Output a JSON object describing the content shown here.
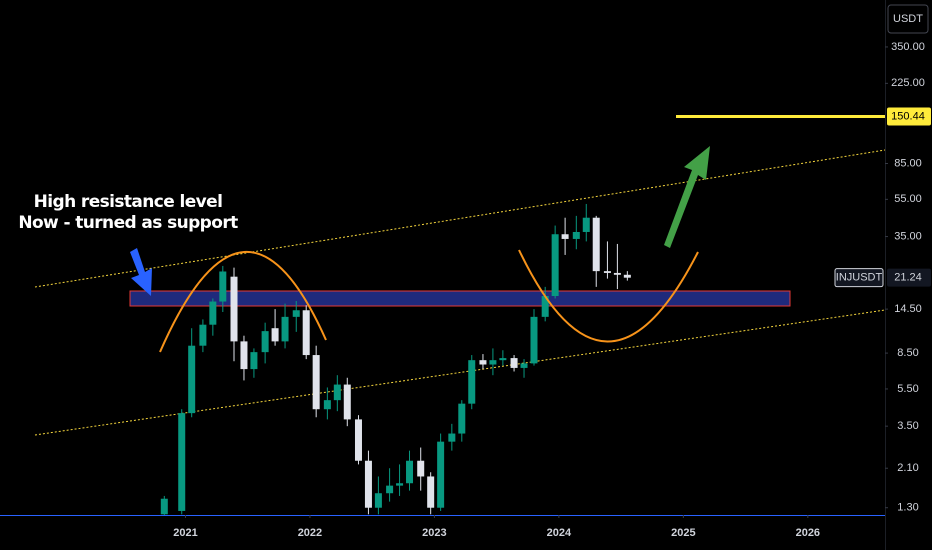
{
  "chart_data": {
    "type": "candlestick",
    "y_axis_label": "USDT",
    "log_scale": true,
    "grid": false,
    "annotations": [
      "High resistance level",
      "Now - turned as support"
    ],
    "xlim": [
      2019.51,
      2026.62
    ],
    "xticks": [
      2021,
      2022,
      2023,
      2024,
      2025,
      2026
    ],
    "ylim": [
      1.19,
      619
    ],
    "yticks": [
      {
        "value": 350,
        "label": "350.00"
      },
      {
        "value": 225,
        "label": "225.00"
      },
      {
        "value": 85,
        "label": "85.00"
      },
      {
        "value": 55,
        "label": "55.00"
      },
      {
        "value": 35,
        "label": "35.00"
      },
      {
        "value": 14.5,
        "label": "14.50"
      },
      {
        "value": 8.5,
        "label": "8.50"
      },
      {
        "value": 5.5,
        "label": "5.50"
      },
      {
        "value": 3.5,
        "label": "3.50"
      },
      {
        "value": 2.1,
        "label": "2.10"
      },
      {
        "value": 1.3,
        "label": "1.30"
      }
    ],
    "hline": {
      "value": 150.44,
      "color": "#ffeb3b"
    },
    "series": [
      {
        "name": "INJUSDT",
        "up_color": "#089981",
        "down_color": "#e0e3eb",
        "x": [
          2020.83,
          2020.97,
          2021.05,
          2021.14,
          2021.22,
          2021.3,
          2021.39,
          2021.47,
          2021.55,
          2021.64,
          2021.72,
          2021.8,
          2021.89,
          2021.97,
          2022.05,
          2022.14,
          2022.22,
          2022.3,
          2022.39,
          2022.47,
          2022.55,
          2022.64,
          2022.72,
          2022.8,
          2022.89,
          2022.97,
          2023.05,
          2023.14,
          2023.22,
          2023.3,
          2023.39,
          2023.47,
          2023.55,
          2023.64,
          2023.72,
          2023.8,
          2023.89,
          2023.97,
          2024.05,
          2024.14,
          2024.22,
          2024.3,
          2024.39,
          2024.47,
          2024.55
        ],
        "open": [
          1.2,
          1.25,
          4.1,
          9.3,
          12.0,
          15.9,
          21.5,
          9.8,
          7.0,
          8.6,
          11.5,
          9.8,
          13.2,
          14.3,
          8.3,
          4.3,
          4.8,
          5.8,
          3.8,
          2.3,
          1.3,
          1.55,
          1.7,
          1.75,
          2.3,
          1.9,
          1.3,
          2.9,
          3.2,
          4.6,
          7.8,
          7.4,
          7.8,
          8.0,
          7.1,
          7.5,
          13.2,
          17,
          36,
          34,
          37,
          44,
          23,
          22.5,
          22
        ],
        "high": [
          1.5,
          4.3,
          11.5,
          12.8,
          16.5,
          24.5,
          24,
          10.5,
          9.0,
          12.3,
          14.5,
          15.5,
          16,
          15.2,
          9.3,
          5.6,
          6.5,
          6.3,
          4.0,
          2.6,
          1.9,
          2.1,
          2.2,
          2.6,
          2.7,
          2.0,
          3.2,
          3.6,
          4.8,
          8.3,
          8.4,
          9.0,
          8.8,
          8.3,
          7.9,
          14.5,
          19,
          40,
          44,
          45,
          52,
          45,
          33,
          32,
          23
        ],
        "low": [
          1.19,
          1.2,
          3.9,
          8.6,
          10.5,
          14,
          7.7,
          6.1,
          6.3,
          7.5,
          9.3,
          9.0,
          11,
          7.9,
          3.9,
          3.8,
          4.2,
          3.5,
          2.2,
          1.2,
          1.2,
          1.4,
          1.5,
          1.6,
          1.6,
          1.2,
          1.25,
          2.6,
          2.9,
          4.3,
          7.0,
          6.5,
          7.3,
          6.8,
          6.3,
          7.3,
          12.5,
          16.5,
          28,
          30,
          33,
          19,
          21,
          18.5,
          20.5
        ],
        "close": [
          1.45,
          4.1,
          9.3,
          12.0,
          15.9,
          22.9,
          9.8,
          7.0,
          8.6,
          11.1,
          9.8,
          13.2,
          14.3,
          8.3,
          4.3,
          4.8,
          5.8,
          3.8,
          2.3,
          1.3,
          1.55,
          1.7,
          1.75,
          2.3,
          1.9,
          1.3,
          2.9,
          3.2,
          4.6,
          7.8,
          7.4,
          7.8,
          8.0,
          7.1,
          7.5,
          13.2,
          17,
          36,
          34,
          37,
          44,
          23,
          22.5,
          22,
          21.24
        ]
      }
    ]
  }
}
